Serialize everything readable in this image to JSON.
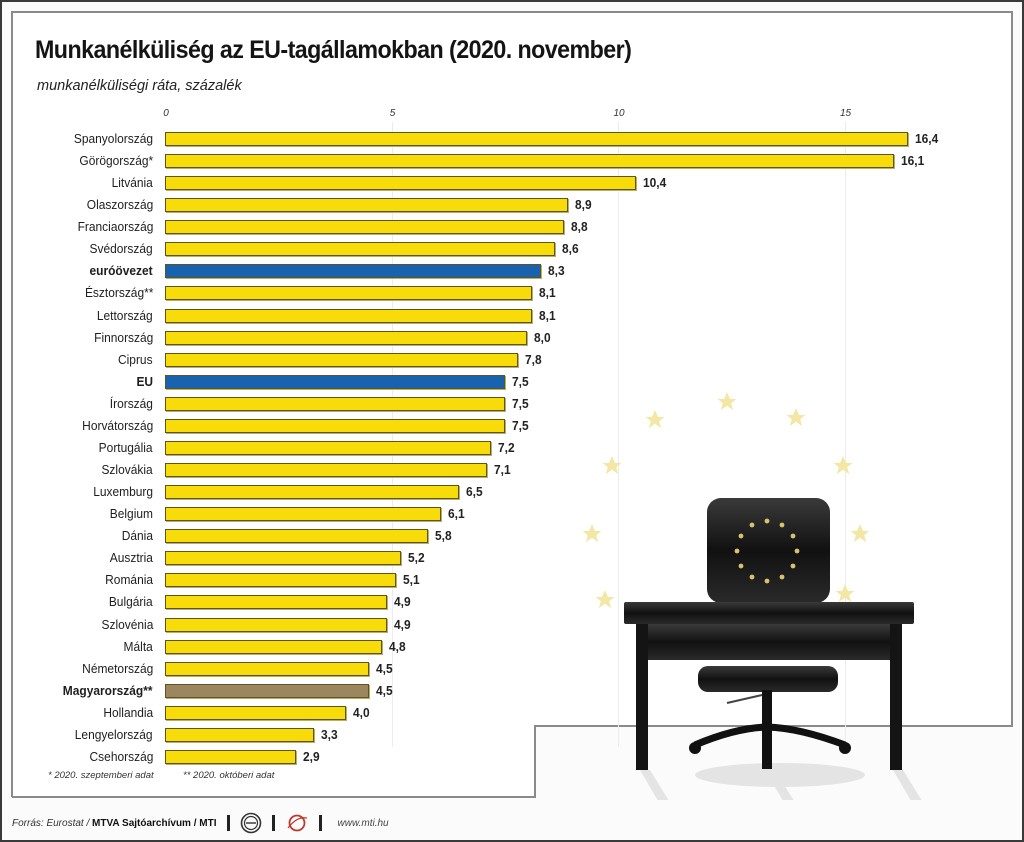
{
  "colors": {
    "bar_default": "#f7dc0a",
    "bar_aggregate": "#1763b0",
    "bar_highlight": "#9c8660",
    "bar_border": "#5e5420",
    "eu_star": "#f3e7a6"
  },
  "chart_data": {
    "type": "bar",
    "orientation": "horizontal",
    "title": "Munkanélküliség az EU-tagállamokban (2020. november)",
    "subtitle": "munkanélküliségi ráta, százalék",
    "xlabel": "",
    "ylabel": "",
    "xlim": [
      0,
      17
    ],
    "xticks": [
      0,
      5,
      10,
      15
    ],
    "xtick_labels": [
      "0",
      "5",
      "10",
      "15"
    ],
    "grid": true,
    "legend": "none",
    "categories": [
      "Spanyolország",
      "Görögország*",
      "Litvánia",
      "Olaszország",
      "Franciaország",
      "Svédország",
      "euróövezet",
      "Észtország**",
      "Lettország",
      "Finnország",
      "Ciprus",
      "EU",
      "Írország",
      "Horvátország",
      "Portugália",
      "Szlovákia",
      "Luxemburg",
      "Belgium",
      "Dánia",
      "Ausztria",
      "Románia",
      "Bulgária",
      "Szlovénia",
      "Málta",
      "Németország",
      "Magyarország**",
      "Hollandia",
      "Lengyelország",
      "Csehország"
    ],
    "values": [
      16.4,
      16.1,
      10.4,
      8.9,
      8.8,
      8.6,
      8.3,
      8.1,
      8.1,
      8.0,
      7.8,
      7.5,
      7.5,
      7.5,
      7.2,
      7.1,
      6.5,
      6.1,
      5.8,
      5.2,
      5.1,
      4.9,
      4.9,
      4.8,
      4.5,
      4.5,
      4.0,
      3.3,
      2.9
    ],
    "value_labels": [
      "16,4",
      "16,1",
      "10,4",
      "8,9",
      "8,8",
      "8,6",
      "8,3",
      "8,1",
      "8,1",
      "8,0",
      "7,8",
      "7,5",
      "7,5",
      "7,5",
      "7,2",
      "7,1",
      "6,5",
      "6,1",
      "5,8",
      "5,2",
      "5,1",
      "4,9",
      "4,9",
      "4,8",
      "4,5",
      "4,5",
      "4,0",
      "3,3",
      "2,9"
    ],
    "bar_kind": [
      "default",
      "default",
      "default",
      "default",
      "default",
      "default",
      "aggregate",
      "default",
      "default",
      "default",
      "default",
      "aggregate",
      "default",
      "default",
      "default",
      "default",
      "default",
      "default",
      "default",
      "default",
      "default",
      "default",
      "default",
      "default",
      "default",
      "highlight",
      "default",
      "default",
      "default"
    ],
    "bold_labels": [
      "euróövezet",
      "EU",
      "Magyarország**"
    ],
    "footnotes": [
      "* 2020. szeptemberi adat",
      "** 2020. októberi adat"
    ]
  },
  "footer": {
    "source_prefix": "Forrás: Eurostat / ",
    "source_strong": "MTVA Sajtóarchívum / MTI",
    "logo1_icon": "mtva-logo-icon",
    "logo2_icon": "mti-logo-icon",
    "url": "www.mti.hu"
  },
  "illustration": {
    "description": "empty black office chair with EU stars behind a black desk, EU star circle in background",
    "icons": [
      "eu-stars-icon",
      "office-chair-icon",
      "desk-icon"
    ]
  }
}
